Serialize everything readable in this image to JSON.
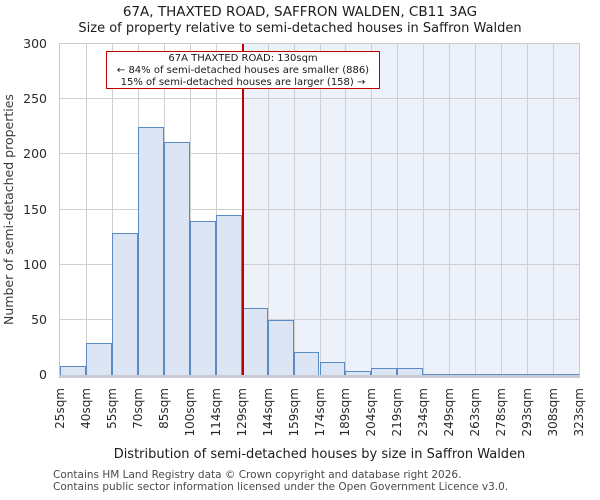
{
  "page": {
    "title": "67A, THAXTED ROAD, SAFFRON WALDEN, CB11 3AG",
    "subtitle": "Size of property relative to semi-detached houses in Saffron Walden"
  },
  "chart_data": {
    "type": "bar",
    "title": "67A, THAXTED ROAD, SAFFRON WALDEN, CB11 3AG",
    "subtitle": "Size of property relative to semi-detached houses in Saffron Walden",
    "xlabel": "Distribution of semi-detached houses by size in Saffron Walden",
    "ylabel": "Number of semi-detached properties",
    "ylim": [
      0,
      300
    ],
    "yticks": [
      0,
      50,
      100,
      150,
      200,
      250,
      300
    ],
    "categories": [
      "25sqm",
      "40sqm",
      "55sqm",
      "70sqm",
      "85sqm",
      "100sqm",
      "114sqm",
      "129sqm",
      "144sqm",
      "159sqm",
      "174sqm",
      "189sqm",
      "204sqm",
      "219sqm",
      "234sqm",
      "249sqm",
      "263sqm",
      "278sqm",
      "293sqm",
      "308sqm",
      "323sqm"
    ],
    "values": [
      8,
      29,
      129,
      225,
      211,
      140,
      145,
      61,
      50,
      21,
      12,
      4,
      6,
      6,
      1,
      1,
      1,
      1,
      1,
      1
    ],
    "grid": true,
    "legend": "none",
    "colors": {
      "bar_fill": "#dbe5f3",
      "bar_edge": "#5b8ac6",
      "marker_line": "#bf0000",
      "shade_fill": "#edf1fa",
      "gridline": "#cfcfcf"
    },
    "marker": {
      "value_sqm": 130,
      "bin_index": 7,
      "bin_frac": 0.0667,
      "label": "67A THAXTED ROAD: 130sqm",
      "smaller_line": "← 84% of semi-detached houses are smaller (886)",
      "larger_line": "15% of semi-detached houses are larger (158) →"
    }
  },
  "footer": {
    "line1": "Contains HM Land Registry data © Crown copyright and database right 2026.",
    "line2": "Contains public sector information licensed under the Open Government Licence v3.0."
  }
}
